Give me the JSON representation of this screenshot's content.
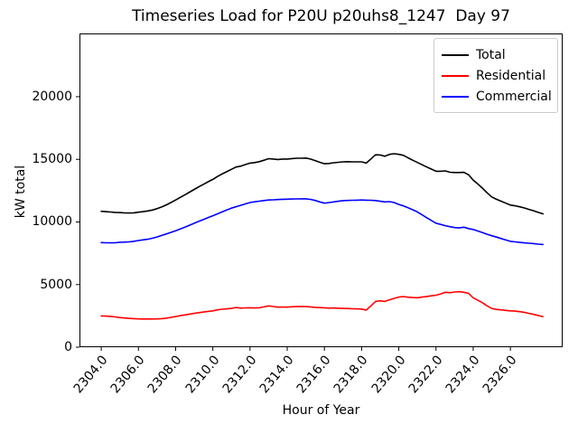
{
  "chart_data": {
    "type": "line",
    "title": "Timeseries Load for P20U p20uhs8_1247  Day 97",
    "xlabel": "Hour of Year",
    "ylabel": "kW total",
    "grid": false,
    "legend_position": "upper right",
    "xlim": [
      2302.83,
      2328.81
    ],
    "ylim": [
      0,
      25050
    ],
    "xticks": [
      2304,
      2306,
      2308,
      2310,
      2312,
      2314,
      2316,
      2318,
      2320,
      2322,
      2324,
      2326
    ],
    "xtick_labels": [
      "2304.0",
      "2306.0",
      "2308.0",
      "2310.0",
      "2312.0",
      "2314.0",
      "2316.0",
      "2318.0",
      "2320.0",
      "2322.0",
      "2324.0",
      "2326.0"
    ],
    "yticks": [
      0,
      5000,
      10000,
      15000,
      20000
    ],
    "ytick_labels": [
      "0",
      "5000",
      "10000",
      "15000",
      "20000"
    ],
    "x": [
      2304.0,
      2304.25,
      2304.5,
      2304.75,
      2305.0,
      2305.25,
      2305.5,
      2305.75,
      2306.0,
      2306.25,
      2306.5,
      2306.75,
      2307.0,
      2307.25,
      2307.5,
      2307.75,
      2308.0,
      2308.25,
      2308.5,
      2308.75,
      2309.0,
      2309.25,
      2309.5,
      2309.75,
      2310.0,
      2310.25,
      2310.5,
      2310.75,
      2311.0,
      2311.25,
      2311.5,
      2311.75,
      2312.0,
      2312.25,
      2312.5,
      2312.75,
      2313.0,
      2313.25,
      2313.5,
      2313.75,
      2314.0,
      2314.25,
      2314.5,
      2314.75,
      2315.0,
      2315.25,
      2315.5,
      2315.75,
      2316.0,
      2316.25,
      2316.5,
      2316.75,
      2317.0,
      2317.25,
      2317.5,
      2317.75,
      2318.0,
      2318.25,
      2318.5,
      2318.75,
      2319.0,
      2319.25,
      2319.5,
      2319.75,
      2320.0,
      2320.25,
      2320.5,
      2320.75,
      2321.0,
      2321.25,
      2321.5,
      2321.75,
      2322.0,
      2322.25,
      2322.5,
      2322.75,
      2323.0,
      2323.25,
      2323.5,
      2323.75,
      2324.0,
      2324.25,
      2324.5,
      2324.75,
      2325.0,
      2325.25,
      2325.5,
      2325.75,
      2326.0,
      2326.25,
      2326.5,
      2326.75,
      2327.0,
      2327.25,
      2327.5,
      2327.75
    ],
    "series": [
      {
        "name": "Total",
        "color": "#000000",
        "values": [
          10850,
          10820,
          10790,
          10760,
          10750,
          10720,
          10710,
          10730,
          10780,
          10820,
          10880,
          10950,
          11060,
          11200,
          11360,
          11550,
          11750,
          11960,
          12170,
          12380,
          12600,
          12810,
          13010,
          13210,
          13400,
          13630,
          13830,
          14010,
          14200,
          14390,
          14450,
          14580,
          14700,
          14740,
          14810,
          14930,
          15050,
          15020,
          14990,
          15020,
          15020,
          15060,
          15090,
          15085,
          15100,
          15020,
          14900,
          14760,
          14650,
          14670,
          14730,
          14760,
          14800,
          14810,
          14800,
          14800,
          14800,
          14700,
          15030,
          15360,
          15350,
          15250,
          15400,
          15450,
          15400,
          15320,
          15120,
          14930,
          14750,
          14570,
          14390,
          14220,
          14050,
          14050,
          14080,
          13970,
          13950,
          13950,
          13960,
          13770,
          13350,
          13030,
          12700,
          12320,
          12000,
          11810,
          11660,
          11500,
          11350,
          11290,
          11210,
          11120,
          11000,
          10890,
          10760,
          10650
        ]
      },
      {
        "name": "Residential",
        "color": "#ff0000",
        "values": [
          2500,
          2480,
          2460,
          2420,
          2370,
          2330,
          2300,
          2280,
          2260,
          2250,
          2260,
          2250,
          2260,
          2280,
          2320,
          2380,
          2450,
          2520,
          2580,
          2640,
          2700,
          2760,
          2810,
          2860,
          2900,
          2980,
          3030,
          3060,
          3100,
          3170,
          3120,
          3140,
          3150,
          3130,
          3150,
          3220,
          3300,
          3250,
          3200,
          3210,
          3200,
          3230,
          3250,
          3240,
          3250,
          3220,
          3180,
          3160,
          3150,
          3120,
          3130,
          3110,
          3100,
          3090,
          3070,
          3060,
          3050,
          2960,
          3300,
          3650,
          3700,
          3650,
          3780,
          3900,
          4000,
          4040,
          3990,
          3960,
          3950,
          4000,
          4050,
          4100,
          4150,
          4250,
          4380,
          4350,
          4400,
          4430,
          4380,
          4300,
          3950,
          3750,
          3550,
          3300,
          3100,
          3020,
          2980,
          2940,
          2900,
          2880,
          2840,
          2790,
          2700,
          2620,
          2530,
          2450
        ]
      },
      {
        "name": "Commercial",
        "color": "#0000ff",
        "values": [
          8350,
          8340,
          8330,
          8340,
          8380,
          8390,
          8410,
          8450,
          8520,
          8570,
          8620,
          8700,
          8800,
          8920,
          9040,
          9170,
          9300,
          9440,
          9590,
          9740,
          9900,
          10050,
          10200,
          10350,
          10500,
          10650,
          10800,
          10950,
          11100,
          11220,
          11330,
          11440,
          11550,
          11610,
          11660,
          11710,
          11750,
          11770,
          11790,
          11810,
          11820,
          11830,
          11840,
          11845,
          11850,
          11800,
          11720,
          11600,
          11500,
          11550,
          11600,
          11650,
          11700,
          11720,
          11730,
          11740,
          11750,
          11740,
          11730,
          11710,
          11650,
          11600,
          11620,
          11550,
          11400,
          11280,
          11130,
          10970,
          10800,
          10570,
          10340,
          10120,
          9900,
          9800,
          9700,
          9620,
          9550,
          9520,
          9580,
          9470,
          9400,
          9280,
          9150,
          9020,
          8900,
          8790,
          8680,
          8560,
          8450,
          8410,
          8370,
          8330,
          8300,
          8270,
          8230,
          8200
        ]
      }
    ]
  }
}
